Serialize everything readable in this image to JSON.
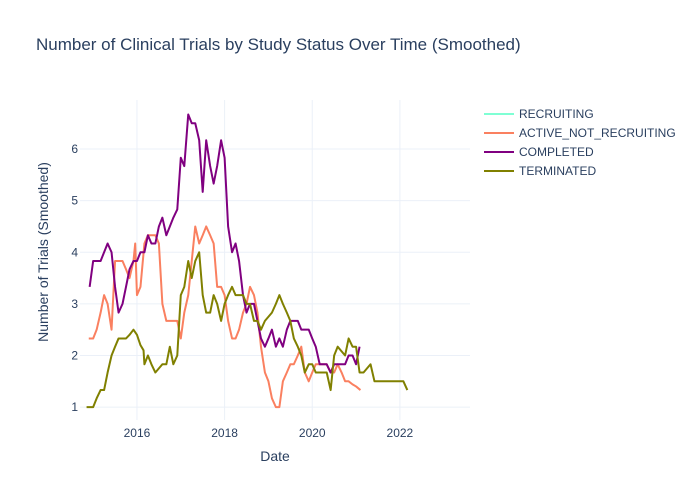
{
  "chart_data": {
    "type": "line",
    "title": "Number of Clinical Trials by Study Status Over Time (Smoothed)",
    "xlabel": "Date",
    "ylabel": "Number of Trials (Smoothed)",
    "xlim": [
      2014.7,
      2023.6
    ],
    "ylim": [
      0.75,
      6.95
    ],
    "x_ticks": [
      2016,
      2018,
      2020,
      2022
    ],
    "x_tick_labels": [
      "2016",
      "2018",
      "2020",
      "2022"
    ],
    "y_ticks": [
      1,
      2,
      3,
      4,
      5,
      6
    ],
    "y_tick_labels": [
      "1",
      "2",
      "3",
      "4",
      "5",
      "6"
    ],
    "grid": true,
    "legend_position": "top-right",
    "series": [
      {
        "name": "RECRUITING",
        "color": "#7fffd4",
        "points": []
      },
      {
        "name": "ACTIVE_NOT_RECRUITING",
        "color": "#fa8060",
        "points": [
          [
            2014.9,
            2.33
          ],
          [
            2015.0,
            2.33
          ],
          [
            2015.08,
            2.5
          ],
          [
            2015.17,
            2.83
          ],
          [
            2015.25,
            3.17
          ],
          [
            2015.33,
            3.0
          ],
          [
            2015.42,
            2.5
          ],
          [
            2015.5,
            3.83
          ],
          [
            2015.58,
            3.83
          ],
          [
            2015.67,
            3.83
          ],
          [
            2015.75,
            3.67
          ],
          [
            2015.83,
            3.5
          ],
          [
            2015.92,
            3.83
          ],
          [
            2015.96,
            4.17
          ],
          [
            2016.0,
            3.17
          ],
          [
            2016.08,
            3.33
          ],
          [
            2016.17,
            4.17
          ],
          [
            2016.25,
            4.33
          ],
          [
            2016.33,
            4.33
          ],
          [
            2016.42,
            4.33
          ],
          [
            2016.5,
            4.17
          ],
          [
            2016.58,
            3.0
          ],
          [
            2016.67,
            2.67
          ],
          [
            2016.75,
            2.67
          ],
          [
            2016.83,
            2.67
          ],
          [
            2016.92,
            2.67
          ],
          [
            2017.0,
            2.33
          ],
          [
            2017.08,
            2.83
          ],
          [
            2017.17,
            3.17
          ],
          [
            2017.25,
            3.83
          ],
          [
            2017.33,
            4.5
          ],
          [
            2017.42,
            4.17
          ],
          [
            2017.5,
            4.33
          ],
          [
            2017.58,
            4.5
          ],
          [
            2017.67,
            4.33
          ],
          [
            2017.75,
            4.17
          ],
          [
            2017.83,
            3.33
          ],
          [
            2017.92,
            3.33
          ],
          [
            2018.0,
            3.17
          ],
          [
            2018.08,
            2.67
          ],
          [
            2018.17,
            2.33
          ],
          [
            2018.25,
            2.33
          ],
          [
            2018.33,
            2.5
          ],
          [
            2018.42,
            2.83
          ],
          [
            2018.5,
            3.0
          ],
          [
            2018.58,
            3.33
          ],
          [
            2018.67,
            3.17
          ],
          [
            2018.75,
            2.83
          ],
          [
            2018.83,
            2.17
          ],
          [
            2018.92,
            1.67
          ],
          [
            2019.0,
            1.5
          ],
          [
            2019.08,
            1.17
          ],
          [
            2019.17,
            1.0
          ],
          [
            2019.25,
            1.0
          ],
          [
            2019.33,
            1.5
          ],
          [
            2019.42,
            1.67
          ],
          [
            2019.5,
            1.83
          ],
          [
            2019.58,
            1.83
          ],
          [
            2019.67,
            2.0
          ],
          [
            2019.75,
            2.17
          ],
          [
            2019.83,
            1.67
          ],
          [
            2019.92,
            1.5
          ],
          [
            2020.0,
            1.67
          ],
          [
            2020.08,
            1.83
          ],
          [
            2020.17,
            1.83
          ],
          [
            2020.25,
            1.83
          ],
          [
            2020.33,
            1.83
          ],
          [
            2020.42,
            1.67
          ],
          [
            2020.5,
            1.67
          ],
          [
            2020.58,
            1.83
          ],
          [
            2020.67,
            1.67
          ],
          [
            2020.75,
            1.5
          ],
          [
            2020.83,
            1.5
          ],
          [
            2020.92,
            1.44
          ],
          [
            2021.0,
            1.4
          ],
          [
            2021.1,
            1.33
          ]
        ]
      },
      {
        "name": "COMPLETED",
        "color": "#800080",
        "points": [
          [
            2014.92,
            3.33
          ],
          [
            2015.0,
            3.83
          ],
          [
            2015.08,
            3.83
          ],
          [
            2015.17,
            3.83
          ],
          [
            2015.25,
            4.0
          ],
          [
            2015.33,
            4.17
          ],
          [
            2015.42,
            4.0
          ],
          [
            2015.5,
            3.33
          ],
          [
            2015.58,
            2.83
          ],
          [
            2015.67,
            3.0
          ],
          [
            2015.75,
            3.33
          ],
          [
            2015.83,
            3.67
          ],
          [
            2015.92,
            3.83
          ],
          [
            2016.0,
            3.83
          ],
          [
            2016.08,
            4.0
          ],
          [
            2016.17,
            4.0
          ],
          [
            2016.25,
            4.33
          ],
          [
            2016.33,
            4.17
          ],
          [
            2016.42,
            4.17
          ],
          [
            2016.5,
            4.5
          ],
          [
            2016.58,
            4.67
          ],
          [
            2016.67,
            4.33
          ],
          [
            2016.75,
            4.5
          ],
          [
            2016.83,
            4.67
          ],
          [
            2016.92,
            4.83
          ],
          [
            2017.0,
            5.83
          ],
          [
            2017.08,
            5.67
          ],
          [
            2017.17,
            6.67
          ],
          [
            2017.25,
            6.5
          ],
          [
            2017.33,
            6.5
          ],
          [
            2017.42,
            6.17
          ],
          [
            2017.5,
            5.17
          ],
          [
            2017.58,
            6.17
          ],
          [
            2017.67,
            5.67
          ],
          [
            2017.75,
            5.33
          ],
          [
            2017.83,
            5.67
          ],
          [
            2017.92,
            6.17
          ],
          [
            2018.0,
            5.83
          ],
          [
            2018.08,
            4.5
          ],
          [
            2018.17,
            4.0
          ],
          [
            2018.25,
            4.17
          ],
          [
            2018.33,
            3.83
          ],
          [
            2018.42,
            3.17
          ],
          [
            2018.5,
            2.83
          ],
          [
            2018.58,
            3.0
          ],
          [
            2018.67,
            3.0
          ],
          [
            2018.75,
            2.67
          ],
          [
            2018.83,
            2.33
          ],
          [
            2018.92,
            2.17
          ],
          [
            2019.0,
            2.33
          ],
          [
            2019.08,
            2.5
          ],
          [
            2019.17,
            2.17
          ],
          [
            2019.25,
            2.33
          ],
          [
            2019.33,
            2.17
          ],
          [
            2019.42,
            2.5
          ],
          [
            2019.5,
            2.67
          ],
          [
            2019.58,
            2.67
          ],
          [
            2019.67,
            2.67
          ],
          [
            2019.75,
            2.5
          ],
          [
            2019.83,
            2.5
          ],
          [
            2019.92,
            2.5
          ],
          [
            2020.0,
            2.33
          ],
          [
            2020.08,
            2.17
          ],
          [
            2020.17,
            1.83
          ],
          [
            2020.25,
            1.83
          ],
          [
            2020.33,
            1.83
          ],
          [
            2020.42,
            1.67
          ],
          [
            2020.5,
            1.83
          ],
          [
            2020.58,
            1.83
          ],
          [
            2020.67,
            1.83
          ],
          [
            2020.75,
            1.83
          ],
          [
            2020.83,
            2.0
          ],
          [
            2020.92,
            2.0
          ],
          [
            2021.0,
            1.83
          ],
          [
            2021.08,
            2.17
          ]
        ]
      },
      {
        "name": "TERMINATED",
        "color": "#808000",
        "points": [
          [
            2014.85,
            1.0
          ],
          [
            2015.0,
            1.0
          ],
          [
            2015.08,
            1.17
          ],
          [
            2015.17,
            1.33
          ],
          [
            2015.25,
            1.33
          ],
          [
            2015.33,
            1.67
          ],
          [
            2015.42,
            2.0
          ],
          [
            2015.5,
            2.17
          ],
          [
            2015.58,
            2.33
          ],
          [
            2015.67,
            2.33
          ],
          [
            2015.75,
            2.33
          ],
          [
            2015.83,
            2.4
          ],
          [
            2015.92,
            2.5
          ],
          [
            2016.0,
            2.4
          ],
          [
            2016.08,
            2.2
          ],
          [
            2016.15,
            2.1
          ],
          [
            2016.17,
            1.83
          ],
          [
            2016.25,
            2.0
          ],
          [
            2016.33,
            1.83
          ],
          [
            2016.42,
            1.67
          ],
          [
            2016.5,
            1.75
          ],
          [
            2016.58,
            1.83
          ],
          [
            2016.67,
            1.83
          ],
          [
            2016.75,
            2.17
          ],
          [
            2016.83,
            1.83
          ],
          [
            2016.92,
            2.0
          ],
          [
            2017.0,
            3.17
          ],
          [
            2017.08,
            3.33
          ],
          [
            2017.17,
            3.83
          ],
          [
            2017.25,
            3.5
          ],
          [
            2017.33,
            3.83
          ],
          [
            2017.42,
            4.0
          ],
          [
            2017.5,
            3.17
          ],
          [
            2017.58,
            2.83
          ],
          [
            2017.67,
            2.83
          ],
          [
            2017.75,
            3.17
          ],
          [
            2017.83,
            3.0
          ],
          [
            2017.92,
            2.67
          ],
          [
            2018.0,
            3.0
          ],
          [
            2018.08,
            3.17
          ],
          [
            2018.17,
            3.33
          ],
          [
            2018.25,
            3.17
          ],
          [
            2018.33,
            3.17
          ],
          [
            2018.42,
            3.17
          ],
          [
            2018.5,
            3.0
          ],
          [
            2018.58,
            3.0
          ],
          [
            2018.67,
            2.67
          ],
          [
            2018.75,
            2.67
          ],
          [
            2018.83,
            2.5
          ],
          [
            2018.92,
            2.67
          ],
          [
            2019.0,
            2.75
          ],
          [
            2019.08,
            2.83
          ],
          [
            2019.17,
            3.0
          ],
          [
            2019.25,
            3.17
          ],
          [
            2019.33,
            3.0
          ],
          [
            2019.42,
            2.83
          ],
          [
            2019.5,
            2.67
          ],
          [
            2019.58,
            2.33
          ],
          [
            2019.67,
            2.17
          ],
          [
            2019.75,
            2.0
          ],
          [
            2019.83,
            1.67
          ],
          [
            2019.92,
            1.83
          ],
          [
            2020.0,
            1.83
          ],
          [
            2020.08,
            1.67
          ],
          [
            2020.17,
            1.67
          ],
          [
            2020.25,
            1.67
          ],
          [
            2020.33,
            1.67
          ],
          [
            2020.42,
            1.33
          ],
          [
            2020.5,
            2.0
          ],
          [
            2020.58,
            2.17
          ],
          [
            2020.67,
            2.08
          ],
          [
            2020.75,
            2.0
          ],
          [
            2020.83,
            2.33
          ],
          [
            2020.92,
            2.17
          ],
          [
            2021.0,
            2.17
          ],
          [
            2021.08,
            1.67
          ],
          [
            2021.17,
            1.67
          ],
          [
            2021.25,
            1.75
          ],
          [
            2021.33,
            1.83
          ],
          [
            2021.42,
            1.5
          ],
          [
            2021.58,
            1.5
          ],
          [
            2021.75,
            1.5
          ],
          [
            2022.0,
            1.5
          ],
          [
            2022.08,
            1.5
          ],
          [
            2022.17,
            1.33
          ]
        ]
      }
    ]
  }
}
